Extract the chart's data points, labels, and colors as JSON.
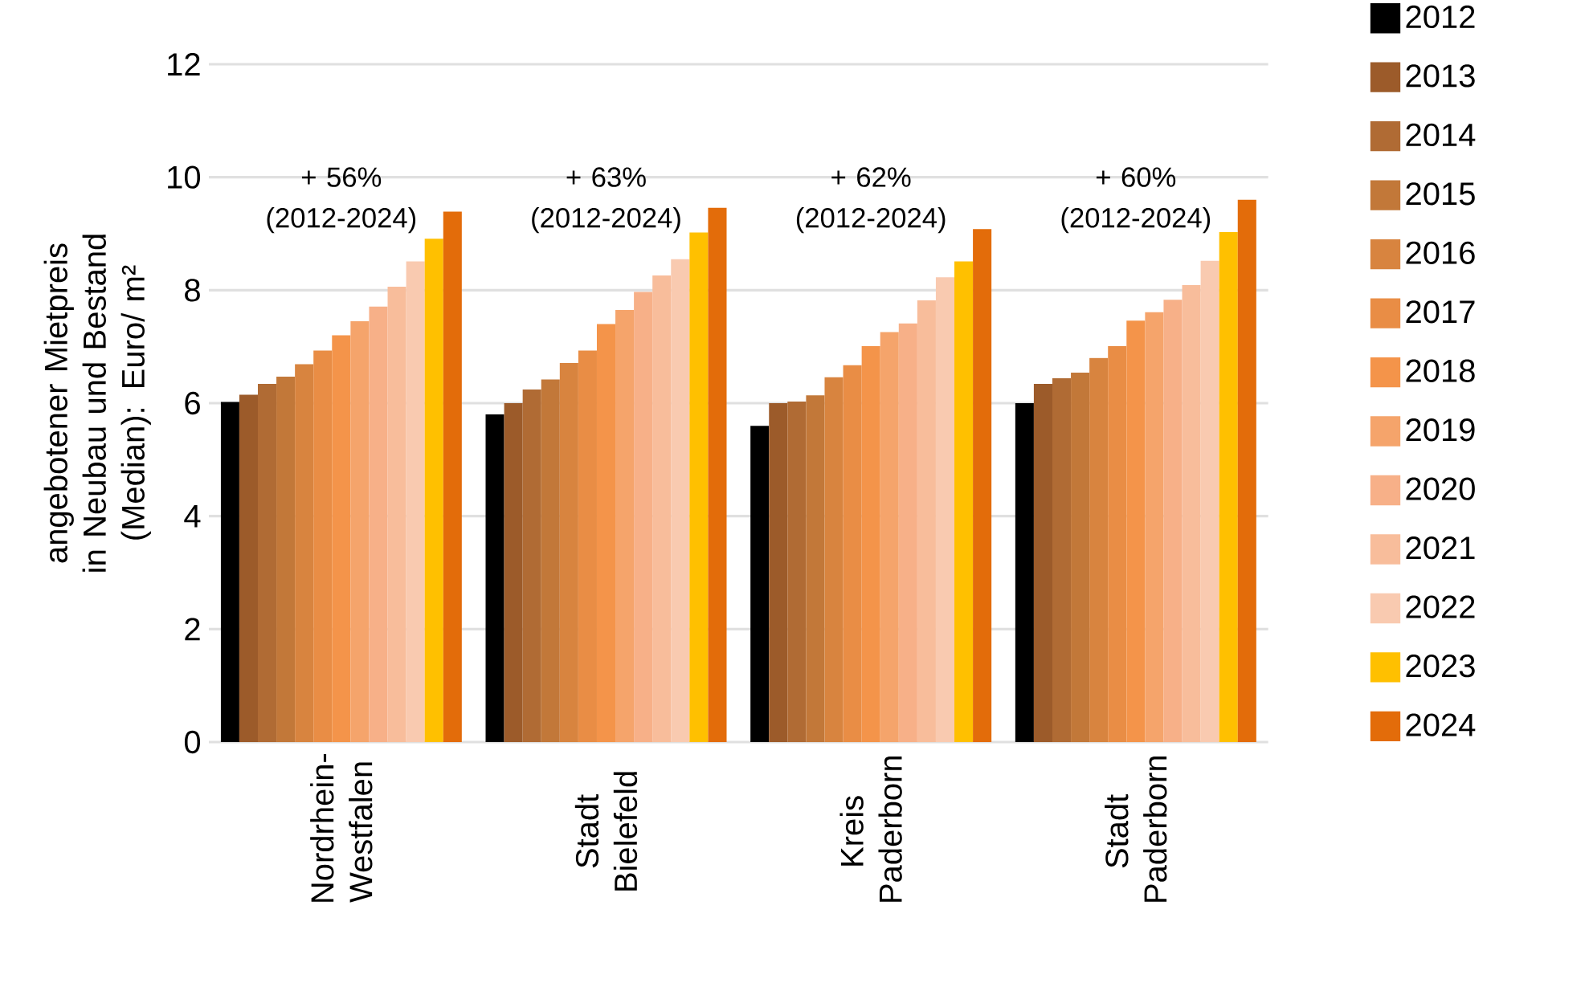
{
  "chart_data": {
    "type": "bar",
    "ylabel": "angebotener Mietpreis in Neubau und Bestand (Median): Euro/ m²",
    "categories": [
      "Nordrhein-Westfalen",
      "Stadt Bielefeld",
      "Kreis Paderborn",
      "Stadt Paderborn"
    ],
    "series": [
      {
        "name": "2012",
        "color": "#000000",
        "values": [
          6.02,
          5.8,
          5.6,
          6.0
        ]
      },
      {
        "name": "2013",
        "color": "#9c5b2a",
        "values": [
          6.15,
          6.0,
          6.0,
          6.34
        ]
      },
      {
        "name": "2014",
        "color": "#b06b34",
        "values": [
          6.34,
          6.24,
          6.03,
          6.44
        ]
      },
      {
        "name": "2015",
        "color": "#c27839",
        "values": [
          6.47,
          6.42,
          6.14,
          6.54
        ]
      },
      {
        "name": "2016",
        "color": "#d8843f",
        "values": [
          6.69,
          6.71,
          6.46,
          6.8
        ]
      },
      {
        "name": "2017",
        "color": "#e98d45",
        "values": [
          6.93,
          6.93,
          6.67,
          7.01
        ]
      },
      {
        "name": "2018",
        "color": "#f4944a",
        "values": [
          7.2,
          7.4,
          7.01,
          7.46
        ]
      },
      {
        "name": "2019",
        "color": "#f5a46b",
        "values": [
          7.45,
          7.65,
          7.26,
          7.61
        ]
      },
      {
        "name": "2020",
        "color": "#f7b088",
        "values": [
          7.71,
          7.97,
          7.41,
          7.83
        ]
      },
      {
        "name": "2021",
        "color": "#f8bd9b",
        "values": [
          8.06,
          8.26,
          7.82,
          8.09
        ]
      },
      {
        "name": "2022",
        "color": "#f9cab0",
        "values": [
          8.51,
          8.55,
          8.23,
          8.52
        ]
      },
      {
        "name": "2023",
        "color": "#ffc000",
        "values": [
          8.91,
          9.02,
          8.51,
          9.03
        ]
      },
      {
        "name": "2024",
        "color": "#e36c0a",
        "values": [
          9.39,
          9.46,
          9.08,
          9.6
        ]
      }
    ],
    "annotations": [
      "+ 56% (2012-2024)",
      "+ 63% (2012-2024)",
      "+ 62% (2012-2024)",
      "+ 60% (2012-2024)"
    ],
    "ylim": [
      0,
      12
    ],
    "yticks": [
      0,
      2,
      4,
      6,
      8,
      10,
      12
    ],
    "grid": "y",
    "legend": "right"
  }
}
